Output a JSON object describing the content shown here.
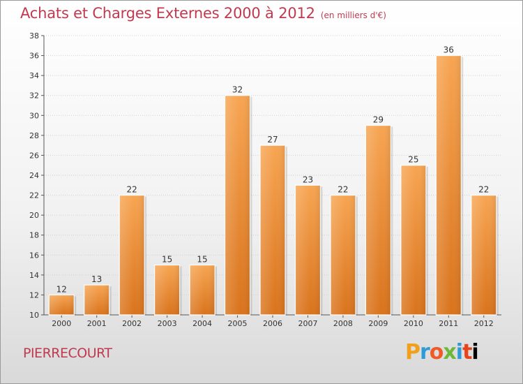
{
  "header": {
    "title": "Achats et Charges Externes 2000 à 2012",
    "subtitle": "(en milliers d'€)"
  },
  "footer": {
    "commune": "PIERRECOURT",
    "brand_letters": [
      "P",
      "r",
      "o",
      "x",
      "i",
      "t",
      "i"
    ]
  },
  "colors": {
    "title": "#c03a4f",
    "bar_top": "#f7a552",
    "bar_bottom": "#d9731c",
    "grid": "#d0d0d0"
  },
  "chart_data": {
    "type": "bar",
    "categories": [
      "2000",
      "2001",
      "2002",
      "2003",
      "2004",
      "2005",
      "2006",
      "2007",
      "2008",
      "2009",
      "2010",
      "2011",
      "2012"
    ],
    "values": [
      12,
      13,
      22,
      15,
      15,
      32,
      27,
      23,
      22,
      29,
      25,
      36,
      22
    ],
    "ylim": [
      10,
      38
    ],
    "yticks": [
      10,
      12,
      14,
      16,
      18,
      20,
      22,
      24,
      26,
      28,
      30,
      32,
      34,
      36,
      38
    ],
    "grid": true,
    "data_labels": true
  }
}
